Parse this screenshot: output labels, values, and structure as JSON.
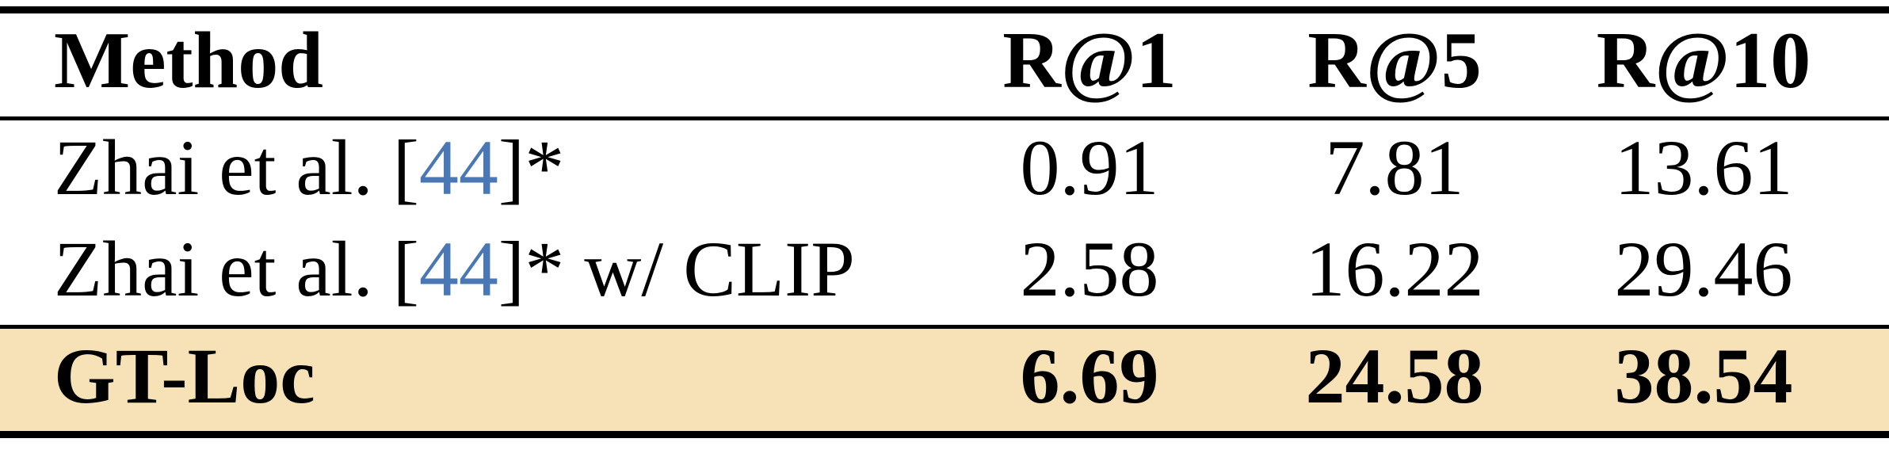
{
  "table": {
    "header": {
      "method": "Method",
      "r1": "R@1",
      "r5": "R@5",
      "r10": "R@10"
    },
    "rows": [
      {
        "method_prefix": "Zhai et al. [",
        "citation": "44",
        "method_suffix": "]*",
        "r1": "0.91",
        "r5": "7.81",
        "r10": "13.61"
      },
      {
        "method_prefix": "Zhai et al. [",
        "citation": "44",
        "method_suffix": "]* w/ CLIP",
        "r1": "2.58",
        "r5": "16.22",
        "r10": "29.46"
      },
      {
        "method": "GT-Loc",
        "r1": "6.69",
        "r5": "24.58",
        "r10": "38.54"
      }
    ]
  },
  "colors": {
    "highlight": "#f7e1b6",
    "citation": "#4a78b5"
  }
}
